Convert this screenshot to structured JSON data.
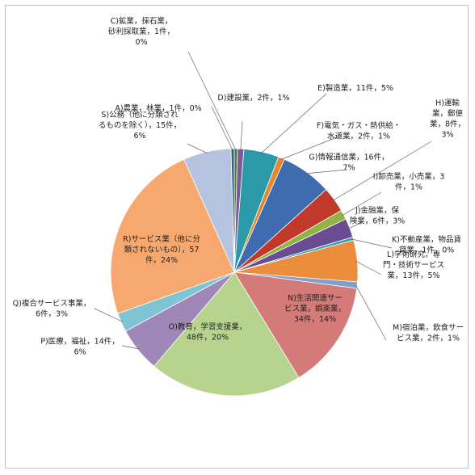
{
  "chart_data": {
    "type": "pie",
    "title": "",
    "legend": "none",
    "start": "top",
    "direction": "clockwise",
    "slices": [
      {
        "label": [
          "C)鉱業，採石業，",
          "砂利採取業，1件，",
          "0%"
        ],
        "value": 1,
        "percent": "0%",
        "color": "#4a7a3a"
      },
      {
        "label": [
          "D)建設業，2件，1%"
        ],
        "value": 2,
        "percent": "1%",
        "color": "#7d5a96"
      },
      {
        "label": [
          "E)製造業，11件，5%"
        ],
        "value": 11,
        "percent": "5%",
        "color": "#2b9aa8"
      },
      {
        "label": [
          "F)電気・ガス・熱供給・",
          "水道業，2件，1%"
        ],
        "value": 2,
        "percent": "1%",
        "color": "#e0892e"
      },
      {
        "label": [
          "G)情報通信業，16件，",
          "7%"
        ],
        "value": 16,
        "percent": "7%",
        "color": "#3f6bb0"
      },
      {
        "label": [
          "H)運輸",
          "業，郵便",
          "業，8件，",
          "3%"
        ],
        "value": 8,
        "percent": "3%",
        "color": "#c0392b"
      },
      {
        "label": [
          "I)卸売業，小売業，3",
          "件，1%"
        ],
        "value": 3,
        "percent": "1%",
        "color": "#8fb443"
      },
      {
        "label": [
          "J)金融業，保",
          "険業，6件，3%"
        ],
        "value": 6,
        "percent": "3%",
        "color": "#6a4c93"
      },
      {
        "label": [
          "K)不動産業，物品賃",
          "貸業，1件，0%"
        ],
        "value": 1,
        "percent": "0%",
        "color": "#31a3b5"
      },
      {
        "label": [
          "L)学術研究，専",
          "門・技術サービス",
          "業，13件，5%"
        ],
        "value": 13,
        "percent": "5%",
        "color": "#ec8d3b"
      },
      {
        "label": [
          "M)宿泊業，飲食サー",
          "ビス業，2件，1%"
        ],
        "value": 2,
        "percent": "1%",
        "color": "#7f9fd0"
      },
      {
        "label": [
          "N)生活関連サー",
          "ビス業，娯楽業，",
          "34件，14%"
        ],
        "value": 34,
        "percent": "14%",
        "color": "#d47a78"
      },
      {
        "label": [
          "O)教育，学習支援業，",
          "48件，20%"
        ],
        "value": 48,
        "percent": "20%",
        "color": "#b7d48f"
      },
      {
        "label": [
          "P)医療，福祉，14件，",
          "6%"
        ],
        "value": 14,
        "percent": "6%",
        "color": "#9f88b8"
      },
      {
        "label": [
          "Q)複合サービス事業，",
          "6件，3%"
        ],
        "value": 6,
        "percent": "3%",
        "color": "#7ec4d3"
      },
      {
        "label": [
          "R)サービス業（他に分",
          "類されないもの），57",
          "件，24%"
        ],
        "value": 57,
        "percent": "24%",
        "color": "#f6a86e"
      },
      {
        "label": [
          "S)公務（他に分類され",
          "るものを除く），15件，",
          "6%"
        ],
        "value": 15,
        "percent": "6%",
        "color": "#b4c4df"
      },
      {
        "label": [
          "A)農業，林業，1件，0%"
        ],
        "value": 1,
        "percent": "0%",
        "color": "#3a5f8f"
      }
    ]
  }
}
